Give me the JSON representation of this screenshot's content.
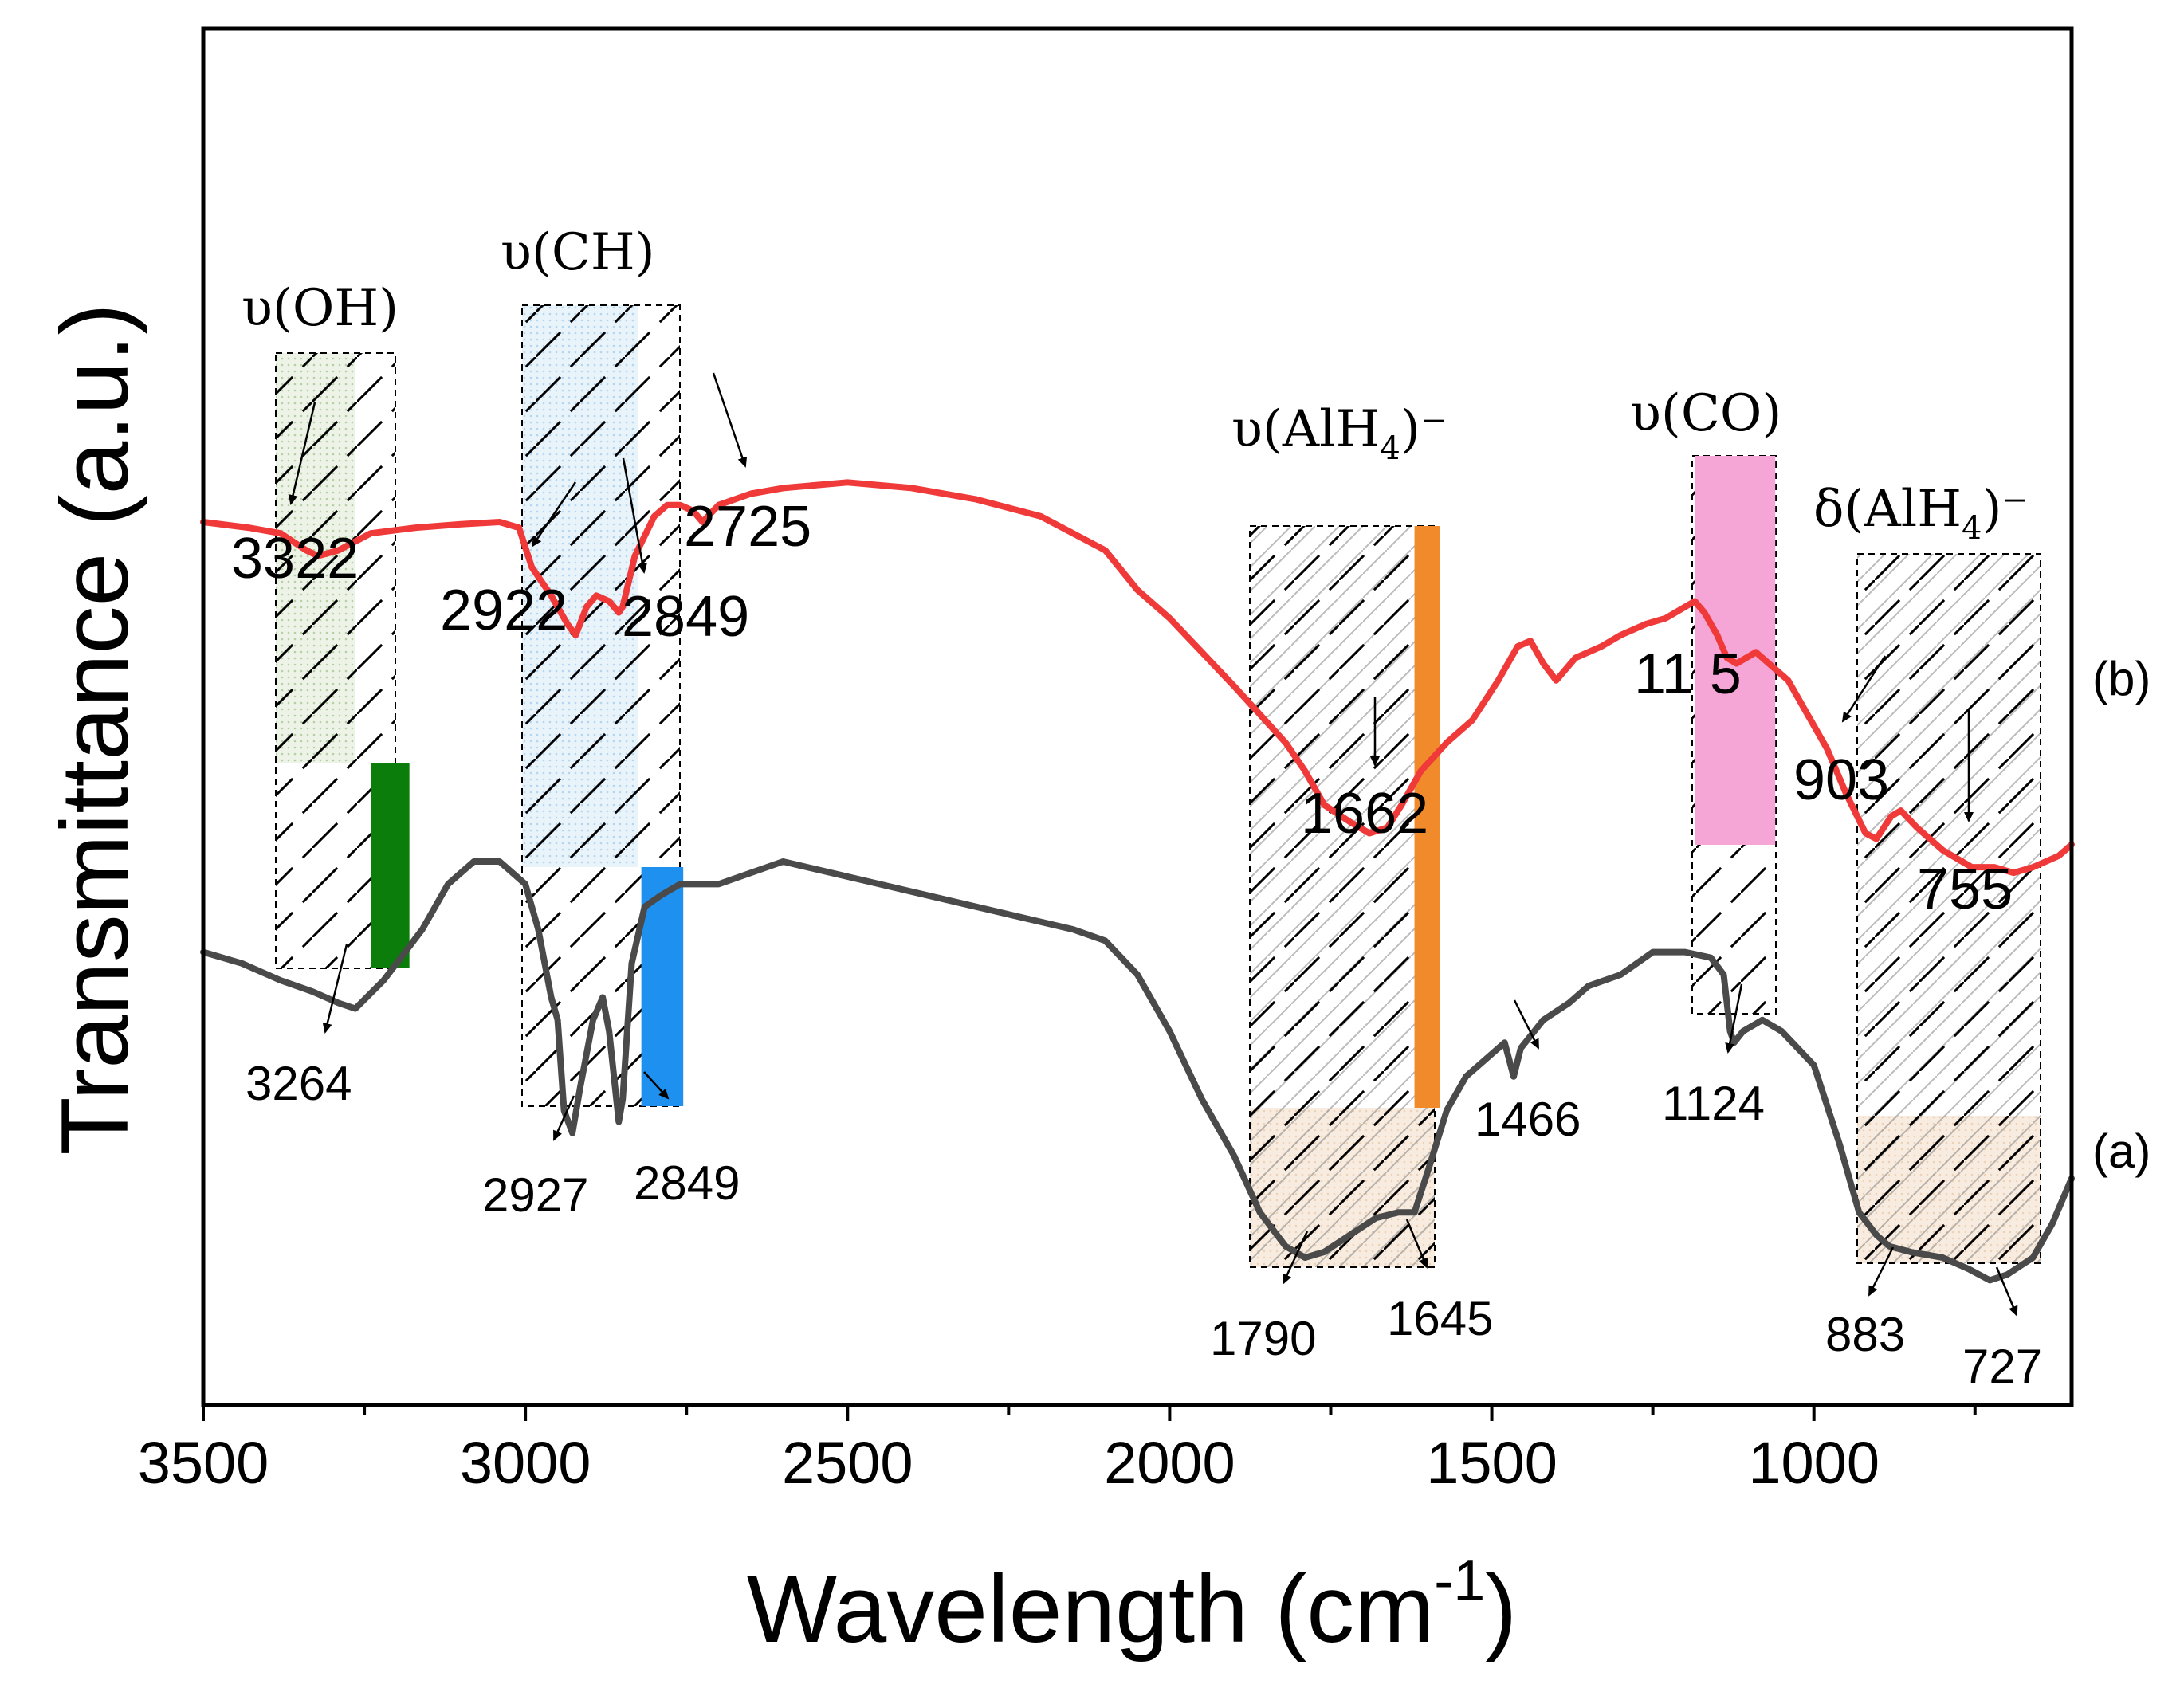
{
  "chart_data": {
    "type": "line",
    "title": "",
    "xlabel": "Wavelength (cm",
    "xlabel_sup": "-1",
    "xlabel_close": ")",
    "ylabel": "Transmittance (a.u.)",
    "xlim": [
      3500,
      600
    ],
    "ylim": [
      0,
      1
    ],
    "x_ticks": [
      3500,
      3000,
      2500,
      2000,
      1500,
      1000
    ],
    "x_tick_labels": [
      "3500",
      "3000",
      "2500",
      "2000",
      "1500",
      "1000"
    ],
    "grid": false,
    "series": [
      {
        "name": "(a)",
        "color": "#4a4a4a",
        "points": [
          [
            3500,
            0.37
          ],
          [
            3440,
            0.36
          ],
          [
            3380,
            0.345
          ],
          [
            3330,
            0.335
          ],
          [
            3290,
            0.325
          ],
          [
            3264,
            0.32
          ],
          [
            3220,
            0.345
          ],
          [
            3160,
            0.39
          ],
          [
            3120,
            0.43
          ],
          [
            3080,
            0.45
          ],
          [
            3040,
            0.45
          ],
          [
            3000,
            0.43
          ],
          [
            2980,
            0.39
          ],
          [
            2960,
            0.33
          ],
          [
            2950,
            0.31
          ],
          [
            2940,
            0.23
          ],
          [
            2927,
            0.21
          ],
          [
            2915,
            0.25
          ],
          [
            2895,
            0.31
          ],
          [
            2880,
            0.33
          ],
          [
            2870,
            0.3
          ],
          [
            2855,
            0.22
          ],
          [
            2849,
            0.24
          ],
          [
            2835,
            0.36
          ],
          [
            2815,
            0.41
          ],
          [
            2790,
            0.42
          ],
          [
            2760,
            0.43
          ],
          [
            2700,
            0.43
          ],
          [
            2600,
            0.45
          ],
          [
            2450,
            0.43
          ],
          [
            2300,
            0.41
          ],
          [
            2150,
            0.39
          ],
          [
            2100,
            0.38
          ],
          [
            2050,
            0.35
          ],
          [
            2000,
            0.3
          ],
          [
            1950,
            0.24
          ],
          [
            1900,
            0.19
          ],
          [
            1860,
            0.14
          ],
          [
            1820,
            0.11
          ],
          [
            1790,
            0.1
          ],
          [
            1760,
            0.105
          ],
          [
            1720,
            0.12
          ],
          [
            1680,
            0.135
          ],
          [
            1645,
            0.14
          ],
          [
            1620,
            0.14
          ],
          [
            1600,
            0.175
          ],
          [
            1570,
            0.23
          ],
          [
            1540,
            0.26
          ],
          [
            1500,
            0.28
          ],
          [
            1480,
            0.29
          ],
          [
            1466,
            0.26
          ],
          [
            1455,
            0.285
          ],
          [
            1420,
            0.31
          ],
          [
            1380,
            0.325
          ],
          [
            1350,
            0.34
          ],
          [
            1300,
            0.35
          ],
          [
            1250,
            0.37
          ],
          [
            1200,
            0.37
          ],
          [
            1160,
            0.365
          ],
          [
            1140,
            0.35
          ],
          [
            1130,
            0.3
          ],
          [
            1124,
            0.29
          ],
          [
            1110,
            0.3
          ],
          [
            1080,
            0.31
          ],
          [
            1050,
            0.3
          ],
          [
            1000,
            0.27
          ],
          [
            960,
            0.2
          ],
          [
            930,
            0.14
          ],
          [
            903,
            0.12
          ],
          [
            883,
            0.11
          ],
          [
            850,
            0.105
          ],
          [
            800,
            0.1
          ],
          [
            760,
            0.09
          ],
          [
            727,
            0.08
          ],
          [
            700,
            0.085
          ],
          [
            660,
            0.1
          ],
          [
            630,
            0.13
          ],
          [
            600,
            0.17
          ]
        ]
      },
      {
        "name": "(b)",
        "color": "#f03a3a",
        "points": [
          [
            3500,
            0.75
          ],
          [
            3430,
            0.745
          ],
          [
            3380,
            0.74
          ],
          [
            3340,
            0.725
          ],
          [
            3322,
            0.72
          ],
          [
            3290,
            0.725
          ],
          [
            3240,
            0.74
          ],
          [
            3170,
            0.745
          ],
          [
            3100,
            0.748
          ],
          [
            3040,
            0.75
          ],
          [
            3010,
            0.745
          ],
          [
            2990,
            0.71
          ],
          [
            2960,
            0.685
          ],
          [
            2935,
            0.66
          ],
          [
            2922,
            0.65
          ],
          [
            2905,
            0.675
          ],
          [
            2890,
            0.685
          ],
          [
            2870,
            0.68
          ],
          [
            2855,
            0.67
          ],
          [
            2849,
            0.675
          ],
          [
            2830,
            0.72
          ],
          [
            2800,
            0.755
          ],
          [
            2780,
            0.765
          ],
          [
            2760,
            0.765
          ],
          [
            2740,
            0.76
          ],
          [
            2725,
            0.75
          ],
          [
            2700,
            0.765
          ],
          [
            2650,
            0.775
          ],
          [
            2600,
            0.78
          ],
          [
            2500,
            0.785
          ],
          [
            2400,
            0.78
          ],
          [
            2300,
            0.77
          ],
          [
            2200,
            0.755
          ],
          [
            2100,
            0.725
          ],
          [
            2050,
            0.69
          ],
          [
            2000,
            0.665
          ],
          [
            1950,
            0.635
          ],
          [
            1900,
            0.605
          ],
          [
            1860,
            0.58
          ],
          [
            1820,
            0.555
          ],
          [
            1790,
            0.53
          ],
          [
            1760,
            0.5
          ],
          [
            1720,
            0.485
          ],
          [
            1690,
            0.475
          ],
          [
            1662,
            0.48
          ],
          [
            1640,
            0.5
          ],
          [
            1610,
            0.53
          ],
          [
            1570,
            0.555
          ],
          [
            1530,
            0.575
          ],
          [
            1490,
            0.61
          ],
          [
            1460,
            0.64
          ],
          [
            1440,
            0.645
          ],
          [
            1420,
            0.625
          ],
          [
            1400,
            0.61
          ],
          [
            1370,
            0.63
          ],
          [
            1330,
            0.64
          ],
          [
            1300,
            0.65
          ],
          [
            1260,
            0.66
          ],
          [
            1230,
            0.665
          ],
          [
            1200,
            0.675
          ],
          [
            1185,
            0.68
          ],
          [
            1170,
            0.67
          ],
          [
            1150,
            0.65
          ],
          [
            1135,
            0.63
          ],
          [
            1120,
            0.625
          ],
          [
            1090,
            0.635
          ],
          [
            1060,
            0.62
          ],
          [
            1040,
            0.61
          ],
          [
            1010,
            0.58
          ],
          [
            980,
            0.55
          ],
          [
            950,
            0.51
          ],
          [
            920,
            0.475
          ],
          [
            903,
            0.47
          ],
          [
            880,
            0.49
          ],
          [
            865,
            0.495
          ],
          [
            840,
            0.48
          ],
          [
            800,
            0.46
          ],
          [
            770,
            0.45
          ],
          [
            755,
            0.445
          ],
          [
            720,
            0.445
          ],
          [
            690,
            0.44
          ],
          [
            660,
            0.445
          ],
          [
            620,
            0.455
          ],
          [
            600,
            0.465
          ]
        ]
      }
    ],
    "series_labels": [
      "(a)",
      "(b)"
    ],
    "band_labels": [
      {
        "id": "oh",
        "text": "υ(OH)",
        "sub": "",
        "sup": ""
      },
      {
        "id": "ch",
        "text": "υ(CH)",
        "sub": "",
        "sup": ""
      },
      {
        "id": "alh4",
        "text": "υ(AlH",
        "sub": "4",
        "sup": ")⁻"
      },
      {
        "id": "co",
        "text": "υ(CO)",
        "sub": "",
        "sup": ""
      },
      {
        "id": "dalh4",
        "text": "δ(AlH",
        "sub": "4",
        "sup": ")⁻"
      }
    ],
    "peak_annotations": [
      {
        "series": "(b)",
        "x": 3322,
        "label": "3322"
      },
      {
        "series": "(b)",
        "x": 2922,
        "label": "2922"
      },
      {
        "series": "(b)",
        "x": 2849,
        "label": "2849"
      },
      {
        "series": "(b)",
        "x": 2725,
        "label": "2725"
      },
      {
        "series": "(b)",
        "x": 1662,
        "label": "1662"
      },
      {
        "series": "(b)",
        "x": 1125,
        "label": "11 5"
      },
      {
        "series": "(b)",
        "x": 903,
        "label": "903"
      },
      {
        "series": "(b)",
        "x": 755,
        "label": "755"
      },
      {
        "series": "(a)",
        "x": 3264,
        "label": "3264"
      },
      {
        "series": "(a)",
        "x": 2927,
        "label": "2927"
      },
      {
        "series": "(a)",
        "x": 2849,
        "label": "2849"
      },
      {
        "series": "(a)",
        "x": 1790,
        "label": "1790"
      },
      {
        "series": "(a)",
        "x": 1645,
        "label": "1645"
      },
      {
        "series": "(a)",
        "x": 1466,
        "label": "1466"
      },
      {
        "series": "(a)",
        "x": 1124,
        "label": "1124"
      },
      {
        "series": "(a)",
        "x": 883,
        "label": "883"
      },
      {
        "series": "(a)",
        "x": 727,
        "label": "727"
      }
    ],
    "colored_bars": [
      {
        "name": "oh-bar",
        "x_from": 3240,
        "x_to": 3180,
        "color": "#0a7d0a"
      },
      {
        "name": "ch-bar",
        "x_from": 2820,
        "x_to": 2755,
        "color": "#1e90f0"
      },
      {
        "name": "alh4-bar",
        "x_from": 1620,
        "x_to": 1580,
        "color": "#f08a2a"
      },
      {
        "name": "co-bar",
        "x_from": 1185,
        "x_to": 1060,
        "color": "#f5a6d6"
      }
    ]
  }
}
